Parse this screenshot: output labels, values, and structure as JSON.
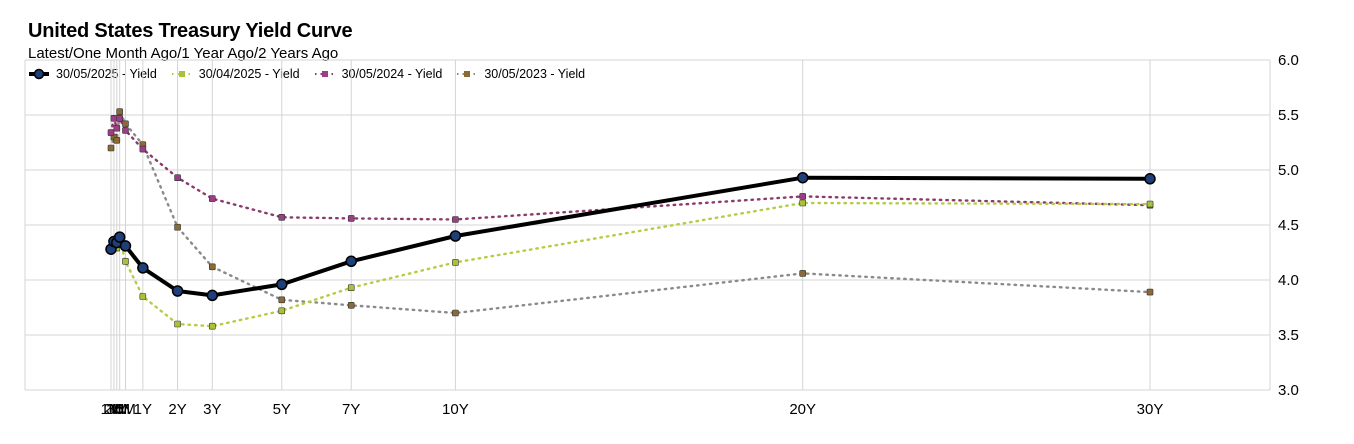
{
  "chart_data": {
    "type": "line",
    "title": "United States Treasury Yield Curve",
    "subtitle": "Latest/One Month Ago/1 Year Ago/2 Years Ago",
    "xlabel": "",
    "ylabel": "",
    "categories": [
      "1M",
      "2M",
      "3M",
      "4M",
      "6M",
      "1Y",
      "2Y",
      "3Y",
      "5Y",
      "7Y",
      "10Y",
      "20Y",
      "30Y"
    ],
    "x_years": [
      0.083,
      0.167,
      0.25,
      0.333,
      0.5,
      1,
      2,
      3,
      5,
      7,
      10,
      20,
      30
    ],
    "y_ticks": [
      "3.0",
      "3.5",
      "4.0",
      "4.5",
      "5.0",
      "5.5",
      "6.0"
    ],
    "ylim": [
      3.0,
      6.0
    ],
    "grid": true,
    "legend_position": "top-left",
    "series": [
      {
        "name": "30/05/2025 - Yield",
        "color": "#000000",
        "marker_color": "#1f3f78",
        "style": "solid",
        "values": [
          4.28,
          4.35,
          4.34,
          4.39,
          4.31,
          4.11,
          3.9,
          3.86,
          3.96,
          4.17,
          4.4,
          4.93,
          4.92
        ]
      },
      {
        "name": "30/04/2025 - Yield",
        "color": "#b5cc45",
        "marker_color": "#a8c23a",
        "style": "dotted",
        "values": [
          4.29,
          4.36,
          4.29,
          4.37,
          4.17,
          3.85,
          3.6,
          3.58,
          3.72,
          3.93,
          4.16,
          4.7,
          4.69
        ]
      },
      {
        "name": "30/05/2024 - Yield",
        "color": "#8b3a6b",
        "marker_color": "#9a3f85",
        "style": "dotted",
        "values": [
          5.34,
          5.47,
          5.38,
          5.47,
          5.36,
          5.19,
          4.93,
          4.74,
          4.57,
          4.56,
          4.55,
          4.76,
          4.68
        ]
      },
      {
        "name": "30/05/2023 - Yield",
        "color": "#8a8a8a",
        "marker_color": "#8a6a35",
        "style": "dotted",
        "values": [
          5.2,
          5.3,
          5.27,
          5.53,
          5.42,
          5.23,
          4.48,
          4.12,
          3.82,
          3.77,
          3.7,
          4.06,
          3.89
        ]
      }
    ]
  }
}
